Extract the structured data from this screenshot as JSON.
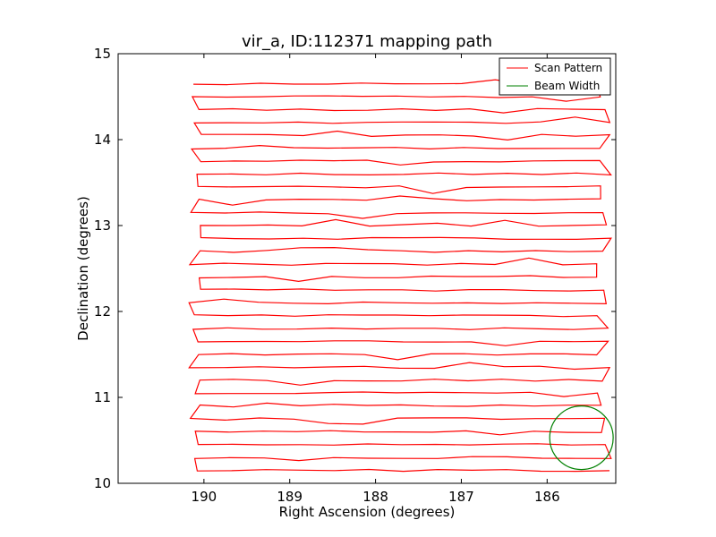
{
  "chart_data": {
    "type": "line",
    "title": "vir_a, ID:112371 mapping path",
    "xlabel": "Right Ascension (degrees)",
    "ylabel": "Declination (degrees)",
    "xlim": [
      191.0,
      185.2
    ],
    "ylim": [
      10,
      15
    ],
    "x_ticks": [
      190,
      189,
      188,
      187,
      186
    ],
    "x_tick_labels": [
      "190",
      "189",
      "188",
      "187",
      "186"
    ],
    "y_ticks": [
      10,
      11,
      12,
      13,
      14,
      15
    ],
    "y_tick_labels": [
      "10",
      "11",
      "12",
      "13",
      "14",
      "15"
    ],
    "grid": false,
    "legend_position": "top-right",
    "legend": [
      "Scan Pattern",
      "Beam Width"
    ],
    "series": [
      {
        "name": "Scan Pattern",
        "color": "#ff0000",
        "style": "raster",
        "dec_rows": [
          14.65,
          14.5,
          14.35,
          14.2,
          14.05,
          13.9,
          13.75,
          13.6,
          13.45,
          13.3,
          13.15,
          13.0,
          12.85,
          12.7,
          12.55,
          12.4,
          12.25,
          12.1,
          11.95,
          11.8,
          11.65,
          11.5,
          11.35,
          11.2,
          11.05,
          10.9,
          10.75,
          10.6,
          10.45,
          10.3,
          10.15
        ],
        "ra_east": 190.1,
        "ra_west": 185.35
      },
      {
        "name": "Beam Width",
        "color": "#008000",
        "style": "circle",
        "center_ra": 185.6,
        "center_dec": 10.53,
        "radius_deg": 0.37
      }
    ]
  }
}
